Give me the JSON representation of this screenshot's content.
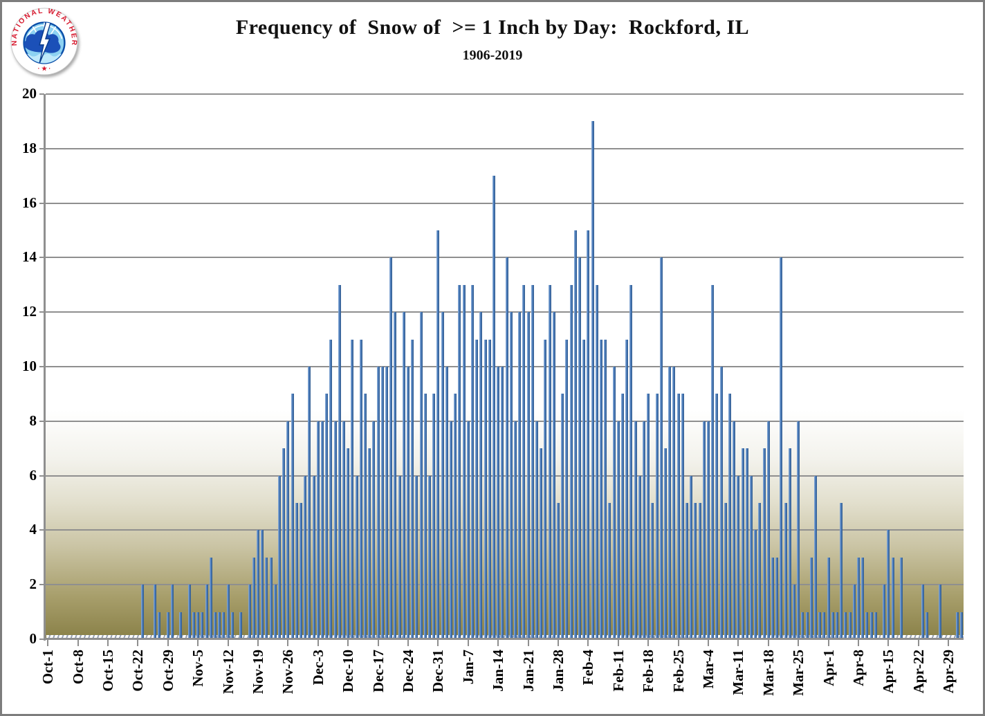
{
  "header": {
    "title": "Frequency of  Snow of  >= 1 Inch by Day:  Rockford, IL",
    "subtitle": "1906-2019"
  },
  "logo": {
    "ring_text": "NATIONAL WEATHER SERVICE",
    "bottom_marks": "· ★ ·",
    "ring_color": "#d6192e",
    "sky_color": "#8dd2f2",
    "cloud_color": "#1b50b8"
  },
  "chart_data": {
    "type": "bar",
    "title": "Frequency of  Snow of  >= 1 Inch by Day:  Rockford, IL",
    "subtitle": "1906-2019",
    "xlabel": "",
    "ylabel": "",
    "ylim": [
      0,
      20
    ],
    "yticks": [
      0,
      2,
      4,
      6,
      8,
      10,
      12,
      14,
      16,
      18,
      20
    ],
    "grid": "horizontal-on",
    "legend": "none",
    "bar_color": "#4e7fbe",
    "x_tick_labels": [
      "Oct-1",
      "Oct-8",
      "Oct-15",
      "Oct-22",
      "Oct-29",
      "Nov-5",
      "Nov-12",
      "Nov-19",
      "Nov-26",
      "Dec-3",
      "Dec-10",
      "Dec-17",
      "Dec-24",
      "Dec-31",
      "Jan-7",
      "Jan-14",
      "Jan-21",
      "Jan-28",
      "Feb-4",
      "Feb-11",
      "Feb-18",
      "Feb-25",
      "Mar-4",
      "Mar-11",
      "Mar-18",
      "Mar-25",
      "Apr-1",
      "Apr-8",
      "Apr-15",
      "Apr-22",
      "Apr-29"
    ],
    "days_per_tick": 7,
    "series_note": "daily counts of days with >= 1 inch snow, season Oct 1 through early May",
    "values": [
      0,
      0,
      0,
      0,
      0,
      0,
      0,
      0,
      0,
      0,
      0,
      0,
      0,
      0,
      0,
      0,
      0,
      0,
      0,
      0,
      0,
      0,
      2,
      0,
      0,
      2,
      1,
      0,
      1,
      2,
      0,
      1,
      0,
      2,
      1,
      1,
      1,
      2,
      3,
      1,
      1,
      1,
      2,
      1,
      0,
      1,
      0,
      2,
      3,
      4,
      4,
      3,
      3,
      2,
      6,
      7,
      8,
      9,
      5,
      5,
      6,
      10,
      6,
      8,
      8,
      9,
      11,
      8,
      13,
      8,
      7,
      11,
      6,
      11,
      9,
      7,
      8,
      10,
      10,
      10,
      14,
      12,
      6,
      12,
      10,
      11,
      6,
      12,
      9,
      6,
      9,
      15,
      12,
      10,
      8,
      9,
      13,
      13,
      8,
      13,
      11,
      12,
      11,
      11,
      17,
      10,
      10,
      14,
      12,
      8,
      12,
      13,
      12,
      13,
      8,
      7,
      11,
      13,
      12,
      5,
      9,
      11,
      13,
      15,
      14,
      11,
      15,
      19,
      13,
      11,
      11,
      5,
      10,
      8,
      9,
      11,
      13,
      8,
      6,
      8,
      9,
      5,
      9,
      14,
      7,
      10,
      10,
      9,
      9,
      5,
      6,
      5,
      5,
      8,
      8,
      13,
      9,
      10,
      5,
      9,
      8,
      6,
      7,
      7,
      6,
      4,
      5,
      7,
      8,
      3,
      3,
      14,
      5,
      7,
      2,
      8,
      1,
      1,
      3,
      6,
      1,
      1,
      3,
      1,
      1,
      5,
      1,
      1,
      2,
      3,
      3,
      1,
      1,
      1,
      0,
      2,
      4,
      3,
      0,
      3,
      0,
      0,
      0,
      0,
      2,
      1,
      0,
      0,
      2,
      0,
      0,
      0,
      1,
      1
    ]
  }
}
